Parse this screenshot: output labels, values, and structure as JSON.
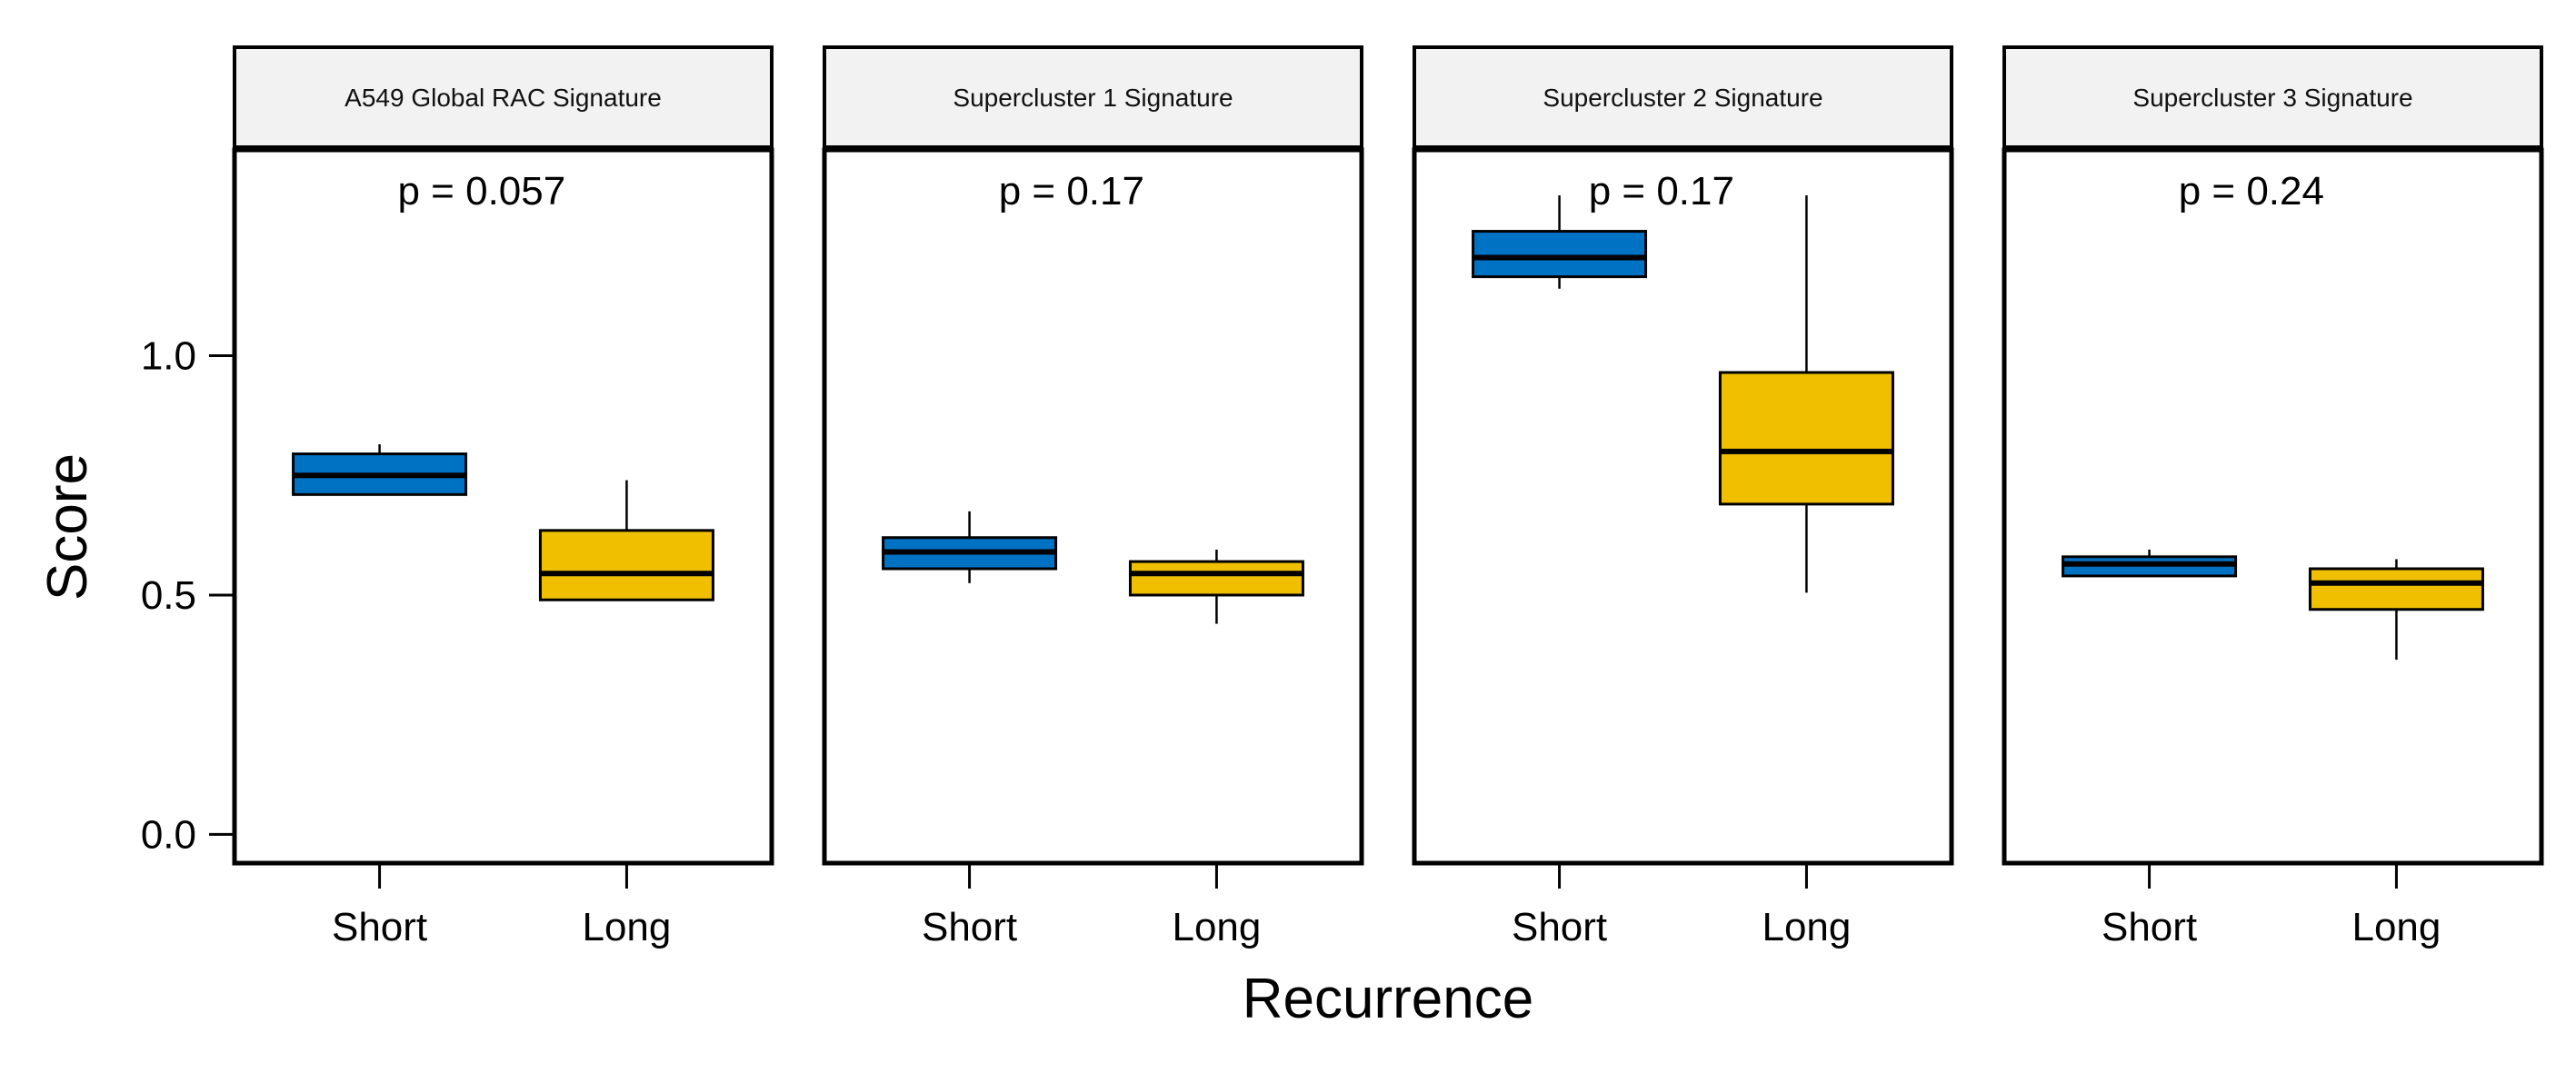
{
  "chart_data": {
    "type": "boxplot",
    "xlabel": "Recurrence",
    "ylabel": "Score",
    "ylim": [
      -0.06,
      1.43
    ],
    "yticks": [
      0.0,
      0.5,
      1.0
    ],
    "ytick_labels": [
      "0.0",
      "0.5",
      "1.0"
    ],
    "categories": [
      "Short",
      "Long"
    ],
    "colors": {
      "Short": "#0072c4",
      "Long": "#f0c000"
    },
    "strip_fill": "#f2f2f2",
    "grid": false,
    "panels": [
      {
        "title": "A549 Global RAC Signature",
        "p_label": "p = 0.057",
        "boxes": [
          {
            "group": "Short",
            "whisker_low": 0.71,
            "q1": 0.71,
            "median": 0.75,
            "q3": 0.795,
            "whisker_high": 0.815
          },
          {
            "group": "Long",
            "whisker_low": 0.49,
            "q1": 0.49,
            "median": 0.545,
            "q3": 0.635,
            "whisker_high": 0.74
          }
        ]
      },
      {
        "title": "Supercluster 1 Signature",
        "p_label": "p = 0.17",
        "boxes": [
          {
            "group": "Short",
            "whisker_low": 0.525,
            "q1": 0.555,
            "median": 0.59,
            "q3": 0.62,
            "whisker_high": 0.675
          },
          {
            "group": "Long",
            "whisker_low": 0.44,
            "q1": 0.5,
            "median": 0.545,
            "q3": 0.57,
            "whisker_high": 0.595
          }
        ]
      },
      {
        "title": "Supercluster 2 Signature",
        "p_label": "p = 0.17",
        "boxes": [
          {
            "group": "Short",
            "whisker_low": 1.14,
            "q1": 1.165,
            "median": 1.205,
            "q3": 1.26,
            "whisker_high": 1.335
          },
          {
            "group": "Long",
            "whisker_low": 0.505,
            "q1": 0.69,
            "median": 0.8,
            "q3": 0.965,
            "whisker_high": 1.335
          }
        ]
      },
      {
        "title": "Supercluster 3 Signature",
        "p_label": "p = 0.24",
        "boxes": [
          {
            "group": "Short",
            "whisker_low": 0.54,
            "q1": 0.54,
            "median": 0.565,
            "q3": 0.58,
            "whisker_high": 0.595
          },
          {
            "group": "Long",
            "whisker_low": 0.365,
            "q1": 0.47,
            "median": 0.525,
            "q3": 0.555,
            "whisker_high": 0.575
          }
        ]
      }
    ]
  }
}
